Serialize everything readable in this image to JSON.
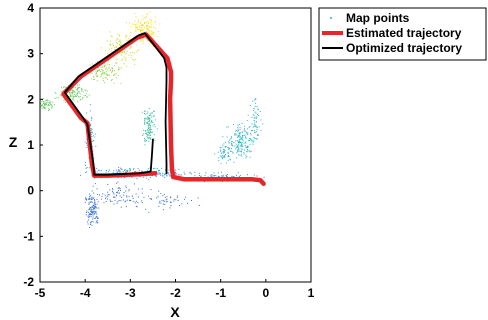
{
  "chart_data": {
    "type": "line",
    "xlabel": "X",
    "ylabel": "Z",
    "xlim": [
      -5,
      1
    ],
    "ylim": [
      -2,
      4
    ],
    "xticks": [
      "-5",
      "-4",
      "-3",
      "-2",
      "-1",
      "0",
      "1"
    ],
    "yticks": [
      "-2",
      "-1",
      "0",
      "1",
      "2",
      "3",
      "4"
    ],
    "grid": false,
    "legend_placement": "outside-top-right",
    "legend": {
      "map_points_label": "Map points",
      "estimated_label": "Estimated trajectory",
      "optimized_label": "Optimized trajectory"
    },
    "series": [
      {
        "name": "Estimated trajectory",
        "color": "#e8262a",
        "x": [
          -0.05,
          -0.12,
          -0.3,
          -1.0,
          -1.8,
          -2.05,
          -2.08,
          -2.1,
          -2.12,
          -2.1,
          -2.1,
          -2.18,
          -2.65,
          -2.85,
          -4.1,
          -4.48,
          -4.1,
          -3.95,
          -3.85,
          -3.8,
          -3.5,
          -2.8,
          -2.45
        ],
        "y": [
          0.15,
          0.23,
          0.25,
          0.25,
          0.25,
          0.3,
          0.5,
          1.0,
          2.0,
          2.4,
          2.6,
          2.9,
          3.42,
          3.35,
          2.5,
          2.12,
          1.6,
          1.48,
          0.6,
          0.33,
          0.33,
          0.36,
          0.38
        ]
      },
      {
        "name": "Optimized trajectory",
        "color": "#000000",
        "x": [
          -2.2,
          -2.2,
          -2.22,
          -2.2,
          -2.2,
          -2.25,
          -2.68,
          -2.82,
          -4.15,
          -4.45,
          -4.05,
          -3.95,
          -3.82,
          -3.8,
          -3.5,
          -2.8,
          -2.55,
          -2.52,
          -2.5
        ],
        "y": [
          0.38,
          0.6,
          1.5,
          2.4,
          2.7,
          2.9,
          3.45,
          3.4,
          2.5,
          2.15,
          1.6,
          1.45,
          0.6,
          0.35,
          0.35,
          0.38,
          0.42,
          0.8,
          1.12
        ]
      }
    ],
    "map_point_clusters": [
      {
        "color": "#f3e020",
        "cx": -2.7,
        "cy": 3.55,
        "sx": 0.25,
        "sy": 0.25,
        "n": 140
      },
      {
        "color": "#cddc28",
        "cx": -3.2,
        "cy": 3.1,
        "sx": 0.3,
        "sy": 0.25,
        "n": 110
      },
      {
        "color": "#9ad24a",
        "cx": -3.6,
        "cy": 2.6,
        "sx": 0.3,
        "sy": 0.2,
        "n": 110
      },
      {
        "color": "#6ccb66",
        "cx": -4.3,
        "cy": 2.15,
        "sx": 0.25,
        "sy": 0.15,
        "n": 140
      },
      {
        "color": "#6ccb66",
        "cx": -4.85,
        "cy": 1.9,
        "sx": 0.12,
        "sy": 0.12,
        "n": 60
      },
      {
        "color": "#3fbfa5",
        "cx": -2.6,
        "cy": 1.4,
        "sx": 0.12,
        "sy": 0.35,
        "n": 120
      },
      {
        "color": "#2fb3c8",
        "cx": -3.9,
        "cy": 1.1,
        "sx": 0.1,
        "sy": 0.45,
        "n": 100
      },
      {
        "color": "#2fb3c8",
        "cx": -0.55,
        "cy": 1.1,
        "sx": 0.22,
        "sy": 0.3,
        "n": 170
      },
      {
        "color": "#2fb3c8",
        "cx": -0.25,
        "cy": 1.55,
        "sx": 0.1,
        "sy": 0.4,
        "n": 60
      },
      {
        "color": "#2fb3c8",
        "cx": -0.9,
        "cy": 0.85,
        "sx": 0.15,
        "sy": 0.2,
        "n": 60
      },
      {
        "color": "#3b90d8",
        "cx": -2.8,
        "cy": 0.4,
        "sx": 1.0,
        "sy": 0.1,
        "n": 220
      },
      {
        "color": "#3b90d8",
        "cx": -1.0,
        "cy": 0.3,
        "sx": 0.6,
        "sy": 0.08,
        "n": 100
      },
      {
        "color": "#3b6fd8",
        "cx": -3.85,
        "cy": -0.4,
        "sx": 0.12,
        "sy": 0.3,
        "n": 120
      },
      {
        "color": "#3b6fd8",
        "cx": -3.3,
        "cy": -0.1,
        "sx": 0.5,
        "sy": 0.2,
        "n": 100
      },
      {
        "color": "#3b6fd8",
        "cx": -2.2,
        "cy": -0.2,
        "sx": 0.4,
        "sy": 0.15,
        "n": 50
      }
    ]
  }
}
